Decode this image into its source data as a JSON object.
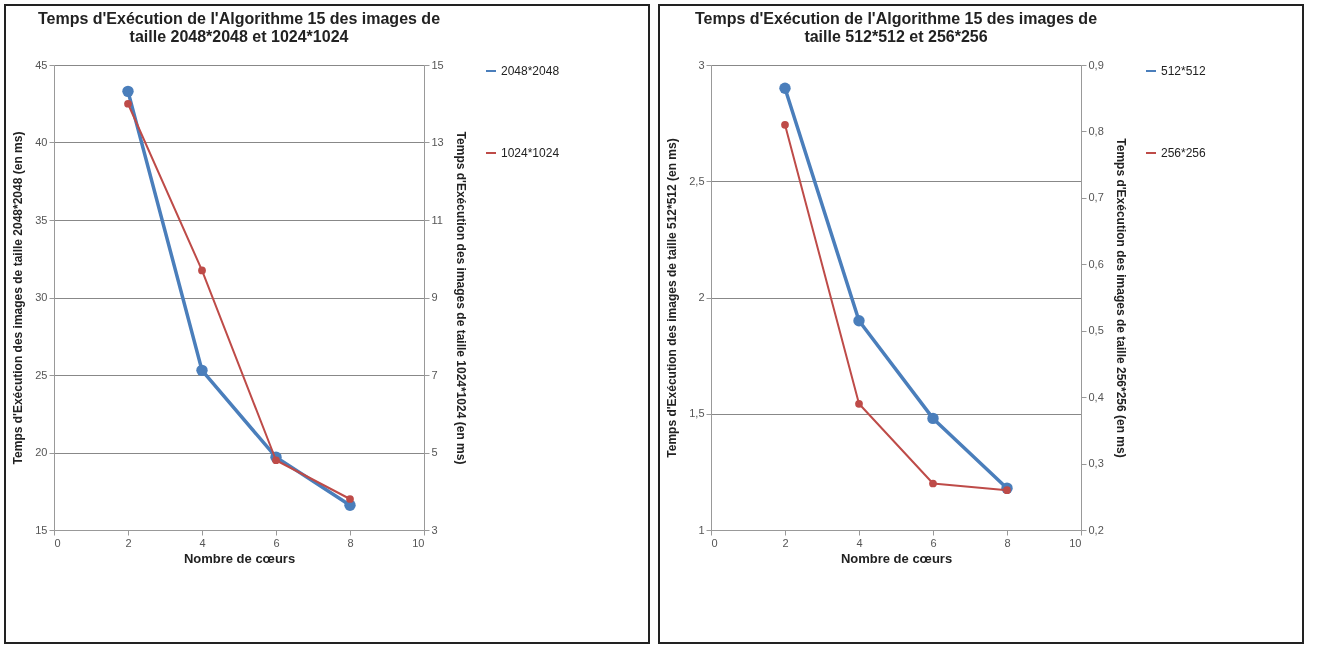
{
  "chart_data": [
    {
      "type": "line",
      "title": "Temps d'Exécution de l'Algorithme 15 des images de taille 2048*2048 et 1024*1024",
      "xlabel": "Nombre de cœurs",
      "ylabel": "Temps d'Exécution des images de taille 2048*2048 (en ms)",
      "y2label": "Temps d'Exécution des images de taille 1024*1024 (en ms)",
      "x": [
        2,
        4,
        6,
        8
      ],
      "series": [
        {
          "name": "2048*2048",
          "color": "#4a7ebb",
          "values": [
            43.3,
            25.3,
            19.7,
            16.6
          ]
        },
        {
          "name": "1024*1024",
          "color": "#be4b48",
          "axis": "y2",
          "values": [
            14.0,
            9.7,
            4.8,
            3.8
          ]
        }
      ],
      "xlim": [
        0,
        10
      ],
      "xticks": [
        0,
        2,
        4,
        6,
        8,
        10
      ],
      "ylim": [
        15,
        45
      ],
      "yticks": [
        15,
        20,
        25,
        30,
        35,
        40,
        45
      ],
      "y2lim": [
        3,
        15
      ],
      "y2ticks": [
        3,
        5,
        7,
        9,
        11,
        13,
        15
      ],
      "grid": "y",
      "legend": "right",
      "marker": "circle"
    },
    {
      "type": "line",
      "title": "Temps d'Exécution de l'Algorithme 15 des images de taille 512*512 et 256*256",
      "xlabel": "Nombre de cœurs",
      "ylabel": "Temps d'Exécution des images de taille 512*512 (en ms)",
      "y2label": "Temps d'Exécution des images de taille 256*256 (en ms)",
      "x": [
        2,
        4,
        6,
        8
      ],
      "series": [
        {
          "name": "512*512",
          "color": "#4a7ebb",
          "values": [
            2.9,
            1.9,
            1.48,
            1.18
          ]
        },
        {
          "name": "256*256",
          "color": "#be4b48",
          "axis": "y2",
          "values": [
            0.81,
            0.39,
            0.27,
            0.26
          ]
        }
      ],
      "xlim": [
        0,
        10
      ],
      "xticks": [
        0,
        2,
        4,
        6,
        8,
        10
      ],
      "ylim": [
        1,
        3
      ],
      "yticks": [
        1,
        {
          "value": 1.5,
          "label": "1,5"
        },
        2,
        {
          "value": 2.5,
          "label": "2,5"
        },
        3
      ],
      "y2lim": [
        0.2,
        0.9
      ],
      "y2ticks": [
        {
          "value": 0.2,
          "label": "0,2"
        },
        {
          "value": 0.3,
          "label": "0,3"
        },
        {
          "value": 0.4,
          "label": "0,4"
        },
        {
          "value": 0.5,
          "label": "0,5"
        },
        {
          "value": 0.6,
          "label": "0,6"
        },
        {
          "value": 0.7,
          "label": "0,7"
        },
        {
          "value": 0.8,
          "label": "0,8"
        },
        {
          "value": 0.9,
          "label": "0,9"
        }
      ],
      "grid": "y",
      "legend": "right",
      "marker": "circle"
    }
  ]
}
